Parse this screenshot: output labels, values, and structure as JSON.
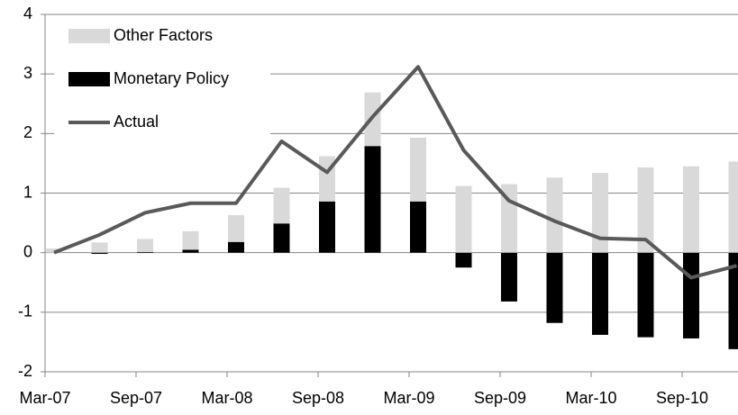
{
  "chart_data": {
    "type": "bar",
    "categories": [
      "Mar-07",
      null,
      "Sep-07",
      null,
      "Mar-08",
      null,
      "Sep-08",
      null,
      "Mar-09",
      null,
      "Sep-09",
      null,
      "Mar-10",
      null,
      "Sep-10",
      null
    ],
    "series": [
      {
        "name": "Monetary Policy",
        "color": "#000000",
        "values": [
          0,
          -0.02,
          0.01,
          0.05,
          0.18,
          0.49,
          0.86,
          1.79,
          0.86,
          -0.25,
          -0.82,
          -1.18,
          -1.38,
          -1.42,
          -1.44,
          -1.62
        ]
      },
      {
        "name": "Other Factors",
        "color": "#d9d9d9",
        "values": [
          0.07,
          0.17,
          0.22,
          0.31,
          0.45,
          0.6,
          0.76,
          0.9,
          1.07,
          1.12,
          1.15,
          1.26,
          1.34,
          1.43,
          1.45,
          1.53
        ]
      },
      {
        "name": "Actual",
        "color": "#595959",
        "type": "line",
        "values": [
          0,
          0.3,
          0.67,
          0.83,
          0.83,
          1.87,
          1.35,
          2.28,
          3.12,
          1.72,
          0.87,
          0.53,
          0.24,
          0.22,
          -0.42,
          -0.22
        ]
      }
    ],
    "ylim": [
      -2,
      4
    ],
    "yticks": [
      -2,
      -1,
      0,
      1,
      2,
      3,
      4
    ],
    "grid": true,
    "legend": "upper left"
  }
}
